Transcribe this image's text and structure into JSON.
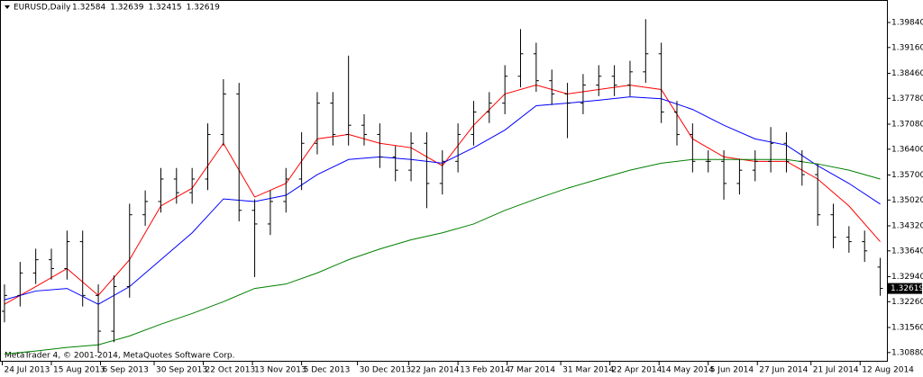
{
  "chart_data": {
    "type": "ohlc",
    "info_label": "EURUSD,Daily",
    "info_values": [
      1.32584,
      1.32639,
      1.32415,
      1.32619
    ],
    "copyright": "MetaTrader 4, © 2001-2014, MetaQuotes Software Corp.",
    "last_price": 1.32619,
    "color": "#000000",
    "x": [
      "2013-07-25",
      "2013-08-01",
      "2013-08-08",
      "2013-08-15",
      "2013-08-22",
      "2013-08-29",
      "2013-09-05",
      "2013-09-12",
      "2013-09-19",
      "2013-09-26",
      "2013-10-03",
      "2013-10-10",
      "2013-10-17",
      "2013-10-24",
      "2013-10-31",
      "2013-11-07",
      "2013-11-14",
      "2013-11-21",
      "2013-11-28",
      "2013-12-05",
      "2013-12-12",
      "2013-12-19",
      "2013-12-26",
      "2014-01-02",
      "2014-01-09",
      "2014-01-16",
      "2014-01-23",
      "2014-01-30",
      "2014-02-06",
      "2014-02-13",
      "2014-02-20",
      "2014-02-27",
      "2014-03-06",
      "2014-03-13",
      "2014-03-20",
      "2014-03-27",
      "2014-04-03",
      "2014-04-10",
      "2014-04-17",
      "2014-04-24",
      "2014-05-01",
      "2014-05-08",
      "2014-05-15",
      "2014-05-22",
      "2014-05-29",
      "2014-06-05",
      "2014-06-12",
      "2014-06-19",
      "2014-06-26",
      "2014-07-03",
      "2014-07-10",
      "2014-07-17",
      "2014-07-24",
      "2014-07-31",
      "2014-08-07",
      "2014-08-14",
      "2014-08-21"
    ],
    "open": [
      1.32,
      1.3243,
      1.3304,
      1.334,
      1.3316,
      1.3389,
      1.3243,
      1.3146,
      1.3267,
      1.3462,
      1.3498,
      1.3559,
      1.3522,
      1.3559,
      1.368,
      1.379,
      1.3474,
      1.3437,
      1.3498,
      1.3559,
      1.3656,
      1.3765,
      1.368,
      1.3705,
      1.368,
      1.3619,
      1.3583,
      1.3656,
      1.3547,
      1.3607,
      1.368,
      1.3741,
      1.3765,
      1.3838,
      1.3899,
      1.3826,
      1.379,
      1.3765,
      1.3814,
      1.3838,
      1.3814,
      1.385,
      1.3899,
      1.3741,
      1.368,
      1.3607,
      1.3607,
      1.3547,
      1.3583,
      1.3607,
      1.3656,
      1.3607,
      1.3571,
      1.3462,
      1.3401,
      1.3389,
      1.332
    ],
    "high": [
      1.3273,
      1.3334,
      1.337,
      1.337,
      1.3419,
      1.3419,
      1.3273,
      1.3297,
      1.3492,
      1.3528,
      1.3589,
      1.3589,
      1.3589,
      1.371,
      1.383,
      1.382,
      1.3504,
      1.3528,
      1.3589,
      1.3686,
      1.3795,
      1.3795,
      1.3894,
      1.3735,
      1.371,
      1.3649,
      1.3686,
      1.3686,
      1.3637,
      1.371,
      1.3771,
      1.3795,
      1.3868,
      1.3966,
      1.3929,
      1.3856,
      1.382,
      1.3844,
      1.3868,
      1.3868,
      1.388,
      1.3993,
      1.3929,
      1.3771,
      1.371,
      1.3637,
      1.3637,
      1.3613,
      1.3637,
      1.37,
      1.3686,
      1.3637,
      1.3601,
      1.3492,
      1.3431,
      1.3419,
      1.3345
    ],
    "low": [
      1.317,
      1.3213,
      1.3274,
      1.3286,
      1.3286,
      1.3213,
      1.3088,
      1.3116,
      1.3237,
      1.3432,
      1.3468,
      1.3492,
      1.3492,
      1.3529,
      1.365,
      1.3444,
      1.3293,
      1.3407,
      1.3468,
      1.3529,
      1.3626,
      1.365,
      1.365,
      1.365,
      1.3589,
      1.3553,
      1.3553,
      1.348,
      1.3517,
      1.3577,
      1.365,
      1.3711,
      1.3735,
      1.3808,
      1.3796,
      1.376,
      1.367,
      1.3735,
      1.3784,
      1.3784,
      1.3784,
      1.382,
      1.3711,
      1.365,
      1.3577,
      1.3577,
      1.3503,
      1.3517,
      1.3553,
      1.3577,
      1.3577,
      1.3541,
      1.3432,
      1.3371,
      1.3359,
      1.3334,
      1.3242
    ],
    "close": [
      1.3243,
      1.3304,
      1.334,
      1.3316,
      1.3389,
      1.3243,
      1.3146,
      1.3267,
      1.3462,
      1.3498,
      1.3559,
      1.3522,
      1.3559,
      1.368,
      1.379,
      1.3474,
      1.3437,
      1.3498,
      1.3559,
      1.3656,
      1.3765,
      1.368,
      1.3705,
      1.368,
      1.3619,
      1.3583,
      1.3656,
      1.3547,
      1.3607,
      1.368,
      1.3741,
      1.3765,
      1.3838,
      1.3899,
      1.3826,
      1.379,
      1.3765,
      1.3814,
      1.3838,
      1.3814,
      1.385,
      1.3899,
      1.3741,
      1.368,
      1.3607,
      1.3607,
      1.3547,
      1.3583,
      1.3607,
      1.3656,
      1.3607,
      1.3571,
      1.3462,
      1.3401,
      1.3389,
      1.3364,
      1.3262
    ],
    "line_x": [
      "2013-07-25",
      "2013-08-08",
      "2013-08-22",
      "2013-09-05",
      "2013-09-19",
      "2013-10-03",
      "2013-10-17",
      "2013-10-31",
      "2013-11-14",
      "2013-11-28",
      "2013-12-12",
      "2013-12-26",
      "2014-01-09",
      "2014-01-23",
      "2014-02-06",
      "2014-02-20",
      "2014-03-06",
      "2014-03-20",
      "2014-04-03",
      "2014-04-17",
      "2014-05-01",
      "2014-05-15",
      "2014-05-29",
      "2014-06-12",
      "2014-06-26",
      "2014-07-10",
      "2014-07-24",
      "2014-08-07",
      "2014-08-21"
    ],
    "lines": [
      {
        "color": "#ff0000",
        "values": [
          1.3219,
          1.3267,
          1.3316,
          1.3243,
          1.334,
          1.3486,
          1.3534,
          1.3656,
          1.351,
          1.3547,
          1.3668,
          1.368,
          1.3656,
          1.3644,
          1.3595,
          1.3705,
          1.379,
          1.3814,
          1.379,
          1.3802,
          1.3814,
          1.3802,
          1.3668,
          1.3619,
          1.3607,
          1.3607,
          1.3559,
          1.3486,
          1.3389
        ]
      },
      {
        "color": "#0000ff",
        "values": [
          1.3231,
          1.3255,
          1.3262,
          1.3219,
          1.3267,
          1.334,
          1.3413,
          1.3505,
          1.3498,
          1.3515,
          1.3571,
          1.3612,
          1.3619,
          1.3612,
          1.3602,
          1.3644,
          1.3692,
          1.3758,
          1.3765,
          1.3773,
          1.3782,
          1.3777,
          1.3748,
          1.3705,
          1.3668,
          1.3651,
          1.3595,
          1.3547,
          1.3491
        ]
      },
      {
        "color": "#008000",
        "values": [
          1.3084,
          1.3092,
          1.3102,
          1.3109,
          1.3133,
          1.3165,
          1.3194,
          1.3226,
          1.3262,
          1.3274,
          1.3304,
          1.334,
          1.3369,
          1.3394,
          1.3413,
          1.3437,
          1.3474,
          1.3505,
          1.3534,
          1.3559,
          1.3583,
          1.3602,
          1.3612,
          1.3612,
          1.3612,
          1.3612,
          1.36,
          1.3583,
          1.3559
        ]
      }
    ],
    "xlim": [
      "2013-07-23",
      "2014-08-24"
    ],
    "xticks": [
      {
        "value": "2013-07-24",
        "label": "24 Jul 2013"
      },
      {
        "value": "2013-08-15",
        "label": "15 Aug 2013"
      },
      {
        "value": "2013-09-06",
        "label": "6 Sep 2013"
      },
      {
        "value": "2013-09-30",
        "label": "30 Sep 2013"
      },
      {
        "value": "2013-10-22",
        "label": "22 Oct 2013"
      },
      {
        "value": "2013-11-13",
        "label": "13 Nov 2013"
      },
      {
        "value": "2013-12-05",
        "label": "5 Dec 2013"
      },
      {
        "value": "2013-12-30",
        "label": "30 Dec 2013"
      },
      {
        "value": "2014-01-22",
        "label": "22 Jan 2014"
      },
      {
        "value": "2014-02-13",
        "label": "13 Feb 2014"
      },
      {
        "value": "2014-03-07",
        "label": "7 Mar 2014"
      },
      {
        "value": "2014-03-31",
        "label": "31 Mar 2014"
      },
      {
        "value": "2014-04-22",
        "label": "22 Apr 2014"
      },
      {
        "value": "2014-05-14",
        "label": "14 May 2014"
      },
      {
        "value": "2014-06-05",
        "label": "5 Jun 2014"
      },
      {
        "value": "2014-06-27",
        "label": "27 Jun 2014"
      },
      {
        "value": "2014-07-21",
        "label": "21 Jul 2014"
      },
      {
        "value": "2014-08-12",
        "label": "12 Aug 2014"
      }
    ],
    "ylim": [
      1.3068,
      1.4045
    ],
    "yticks": [
      {
        "value": 1.3984,
        "label": "1.39840"
      },
      {
        "value": 1.3916,
        "label": "1.39160"
      },
      {
        "value": 1.3846,
        "label": "1.38460"
      },
      {
        "value": 1.3778,
        "label": "1.37780"
      },
      {
        "value": 1.3708,
        "label": "1.37080"
      },
      {
        "value": 1.364,
        "label": "1.36400"
      },
      {
        "value": 1.357,
        "label": "1.35700"
      },
      {
        "value": 1.3502,
        "label": "1.35020"
      },
      {
        "value": 1.3432,
        "label": "1.34320"
      },
      {
        "value": 1.3364,
        "label": "1.33640"
      },
      {
        "value": 1.3294,
        "label": "1.32940"
      },
      {
        "value": 1.3226,
        "label": "1.32260"
      },
      {
        "value": 1.3156,
        "label": "1.31560"
      },
      {
        "value": 1.3088,
        "label": "1.30880"
      }
    ]
  }
}
